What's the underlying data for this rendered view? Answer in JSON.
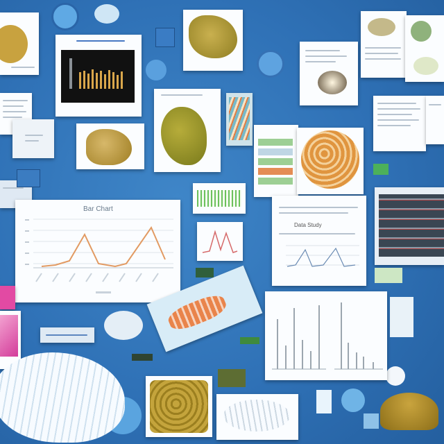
{
  "main_chart": {
    "title": "Bar Chart"
  },
  "document_snippet": {
    "heading": "Data Study"
  },
  "colors": {
    "background": "#2f71b6",
    "card": "#fbfdff",
    "accent_orange": "#e6925a",
    "accent_olive": "#b79b2b",
    "accent_green": "#46b45a",
    "accent_pink": "#e64aa6"
  },
  "icons": [
    "folder-icon",
    "photo-icon",
    "chart-icon",
    "document-icon",
    "shell-icon",
    "bowl-icon"
  ]
}
